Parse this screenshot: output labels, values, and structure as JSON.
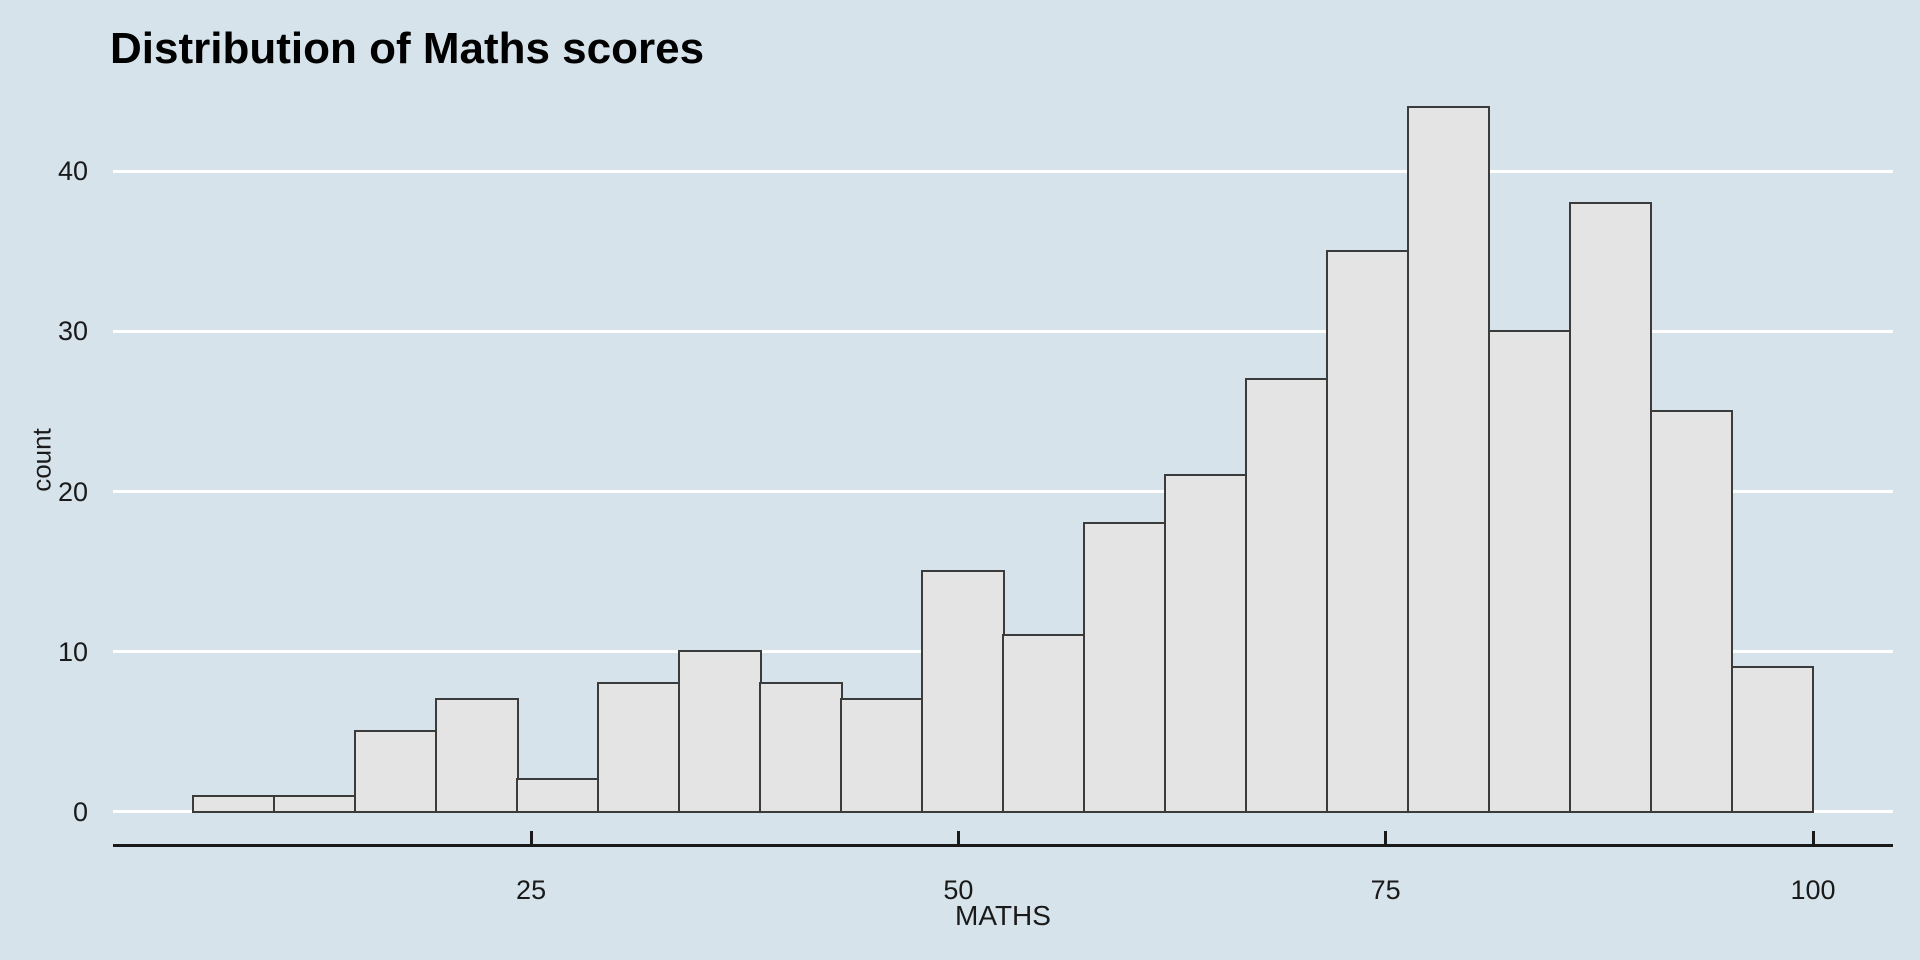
{
  "chart_data": {
    "type": "bar",
    "subtype": "histogram",
    "title": "Distribution of Maths scores",
    "xlabel": "MATHS",
    "ylabel": "count",
    "bin_edges": [
      5.26,
      10.0,
      14.74,
      19.47,
      24.21,
      28.95,
      33.68,
      38.42,
      43.16,
      47.89,
      52.63,
      57.37,
      62.11,
      66.84,
      71.58,
      76.32,
      81.05,
      85.79,
      90.53,
      95.26,
      100.0
    ],
    "counts": [
      1,
      1,
      5,
      7,
      2,
      8,
      10,
      8,
      7,
      15,
      11,
      18,
      21,
      27,
      35,
      44,
      30,
      38,
      25,
      9
    ],
    "x_ticks": [
      25,
      50,
      75,
      100
    ],
    "y_ticks": [
      0,
      10,
      20,
      30,
      40
    ],
    "x_range": [
      0.54,
      104.68
    ],
    "y_range": [
      -2.2,
      46.2
    ],
    "grid": "horizontal-only",
    "legend": "none"
  },
  "colors": {
    "background": "#d6e3eb",
    "bar_fill": "#e4e4e4",
    "bar_border": "#3b3b3b",
    "gridline": "#ffffff",
    "axis_line": "#1a1a1a",
    "tick_mark": "#1a1a1a",
    "text": "#1a1a1a",
    "title_text": "#000000"
  }
}
